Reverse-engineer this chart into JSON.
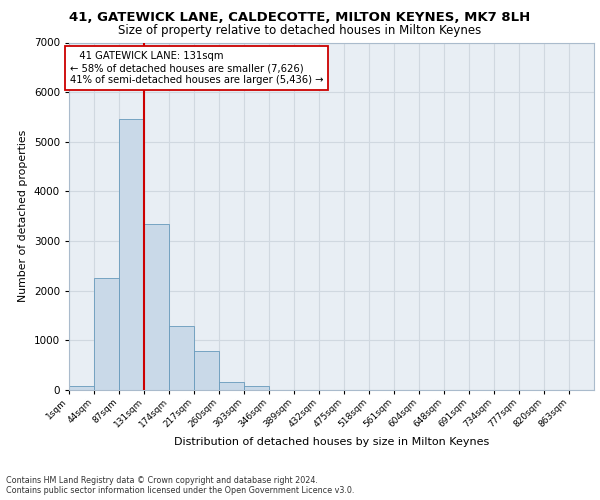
{
  "title_line1": "41, GATEWICK LANE, CALDECOTTE, MILTON KEYNES, MK7 8LH",
  "title_line2": "Size of property relative to detached houses in Milton Keynes",
  "xlabel": "Distribution of detached houses by size in Milton Keynes",
  "ylabel": "Number of detached properties",
  "footer_line1": "Contains HM Land Registry data © Crown copyright and database right 2024.",
  "footer_line2": "Contains public sector information licensed under the Open Government Licence v3.0.",
  "annotation_line1": "   41 GATEWICK LANE: 131sqm",
  "annotation_line2": "← 58% of detached houses are smaller (7,626)",
  "annotation_line3": "41% of semi-detached houses are larger (5,436) →",
  "categories": [
    "1sqm",
    "44sqm",
    "87sqm",
    "131sqm",
    "174sqm",
    "217sqm",
    "260sqm",
    "303sqm",
    "346sqm",
    "389sqm",
    "432sqm",
    "475sqm",
    "518sqm",
    "561sqm",
    "604sqm",
    "648sqm",
    "691sqm",
    "734sqm",
    "777sqm",
    "820sqm",
    "863sqm"
  ],
  "bin_edges": [
    1,
    44,
    87,
    131,
    174,
    217,
    260,
    303,
    346,
    389,
    432,
    475,
    518,
    561,
    604,
    648,
    691,
    734,
    777,
    820,
    863,
    906
  ],
  "values": [
    80,
    2250,
    5450,
    3350,
    1280,
    780,
    160,
    90,
    0,
    0,
    0,
    0,
    0,
    0,
    0,
    0,
    0,
    0,
    0,
    0,
    0
  ],
  "bar_color": "#c9d9e8",
  "bar_edge_color": "#6699bb",
  "vline_x": 131,
  "vline_color": "#cc0000",
  "grid_color": "#d0d8e0",
  "background_color": "#e8eef4",
  "annotation_box_color": "#ffffff",
  "annotation_box_edge": "#cc0000",
  "ylim": [
    0,
    7000
  ],
  "yticks": [
    0,
    1000,
    2000,
    3000,
    4000,
    5000,
    6000,
    7000
  ],
  "fig_width": 6.0,
  "fig_height": 5.0,
  "dpi": 100
}
